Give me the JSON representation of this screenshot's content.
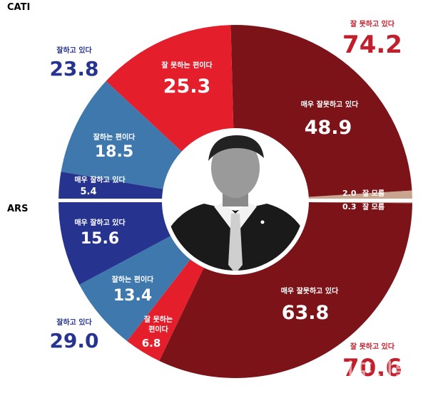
{
  "colors": {
    "very_bad": "#7b1319",
    "bad": "#e41e2b",
    "good": "#3f78ad",
    "very_good": "#27348f",
    "dont_know": "#c9a58f",
    "total_bad_text": "#c21f2c",
    "total_good_text": "#27348f"
  },
  "chart_data": {
    "type": "pie",
    "charts": [
      {
        "name": "CATI",
        "slices": [
          {
            "label": "매우 잘못하고 있다",
            "value": 48.9,
            "key": "very_bad"
          },
          {
            "label": "잘 못하는 편이다",
            "value": 25.3,
            "key": "bad"
          },
          {
            "label": "잘하는 편이다",
            "value": 18.5,
            "key": "good"
          },
          {
            "label": "매우 잘하고 있다",
            "value": 5.4,
            "key": "very_good"
          },
          {
            "label": "잘 모름",
            "value": 2.0,
            "key": "dont_know"
          }
        ],
        "totals": [
          {
            "label": "잘 못하고 있다",
            "value": 74.2
          },
          {
            "label": "잘하고 있다",
            "value": 23.8
          }
        ]
      },
      {
        "name": "ARS",
        "slices": [
          {
            "label": "매우 잘못하고 있다",
            "value": 63.8,
            "key": "very_bad"
          },
          {
            "label": "잘 못하는 편이다",
            "value": 6.8,
            "key": "bad"
          },
          {
            "label": "잘하는 편이다",
            "value": 13.4,
            "key": "good"
          },
          {
            "label": "매우 잘하고 있다",
            "value": 15.6,
            "key": "very_good"
          },
          {
            "label": "잘 모름",
            "value": 0.3,
            "key": "dont_know"
          }
        ],
        "totals": [
          {
            "label": "잘 못하고 있다",
            "value": 70.6
          },
          {
            "label": "잘하고 있다",
            "value": 29.0
          }
        ]
      }
    ]
  },
  "labels": {
    "cati": "CATI",
    "ars": "ARS",
    "cati_very_bad": {
      "text": "매우 잘못하고 있다",
      "value": "48.9"
    },
    "cati_bad": {
      "text": "잘 못하는 편이다",
      "value": "25.3"
    },
    "cati_good": {
      "text": "잘하는 편이다",
      "value": "18.5"
    },
    "cati_very_good": {
      "text": "매우 잘하고 있다",
      "value": "5.4"
    },
    "cati_dont_know": {
      "text": "잘 모름",
      "value": "2.0"
    },
    "cati_total_bad": {
      "text": "잘 못하고 있다",
      "value": "74.2"
    },
    "cati_total_good": {
      "text": "잘하고 있다",
      "value": "23.8"
    },
    "ars_very_bad": {
      "text": "매우 잘못하고 있다",
      "value": "63.8"
    },
    "ars_bad": {
      "line1": "잘 못하는",
      "line2": "편이다",
      "value": "6.8"
    },
    "ars_good": {
      "text": "잘하는 편이다",
      "value": "13.4"
    },
    "ars_very_good": {
      "text": "매우 잘하고 있다",
      "value": "15.6"
    },
    "ars_dont_know": {
      "text": "잘 모름",
      "value": "0.3"
    },
    "ars_total_bad": {
      "text": "잘 못하고 있다",
      "value": "70.6"
    },
    "ars_total_good": {
      "text": "잘하고 있다",
      "value": "29.0"
    }
  },
  "watermark": {
    "logo": "서귀포신문",
    "url": "www.seogwipo.tv"
  }
}
